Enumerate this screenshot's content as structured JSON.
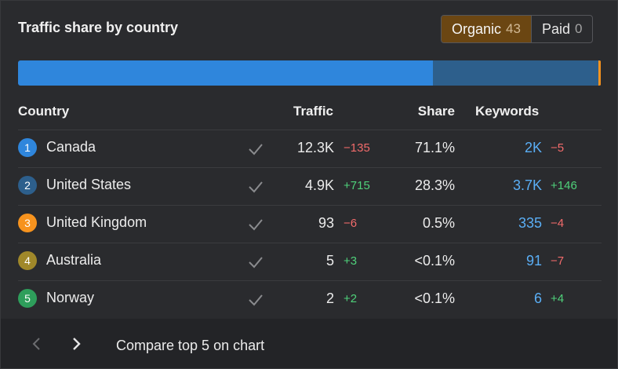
{
  "widget": {
    "title": "Traffic share by country",
    "toggle": {
      "organic_label": "Organic",
      "organic_count": "43",
      "paid_label": "Paid",
      "paid_count": "0",
      "selected": "Organic"
    }
  },
  "share_bar": {
    "segments": [
      {
        "country": "Canada",
        "share": 71.1,
        "color": "#2f86dc"
      },
      {
        "country": "United States",
        "share": 28.3,
        "color": "#2d5f8c"
      },
      {
        "country": "United Kingdom",
        "share": 0.5,
        "color": "#f7931e"
      }
    ]
  },
  "table": {
    "headers": {
      "country": "Country",
      "traffic": "Traffic",
      "share": "Share",
      "keywords": "Keywords"
    },
    "rows": [
      {
        "rank": "1",
        "country": "Canada",
        "traffic": "12.3K",
        "traffic_delta": "−135",
        "traffic_delta_dir": "neg",
        "share": "71.1%",
        "keywords": "2K",
        "keywords_delta": "−5",
        "keywords_delta_dir": "neg",
        "color": "#2f86dc",
        "checked": true
      },
      {
        "rank": "2",
        "country": "United States",
        "traffic": "4.9K",
        "traffic_delta": "+715",
        "traffic_delta_dir": "pos",
        "share": "28.3%",
        "keywords": "3.7K",
        "keywords_delta": "+146",
        "keywords_delta_dir": "pos",
        "color": "#2d5f8c",
        "checked": true
      },
      {
        "rank": "3",
        "country": "United Kingdom",
        "traffic": "93",
        "traffic_delta": "−6",
        "traffic_delta_dir": "neg",
        "share": "0.5%",
        "keywords": "335",
        "keywords_delta": "−4",
        "keywords_delta_dir": "neg",
        "color": "#f7931e",
        "checked": true
      },
      {
        "rank": "4",
        "country": "Australia",
        "traffic": "5",
        "traffic_delta": "+3",
        "traffic_delta_dir": "pos",
        "share": "<0.1%",
        "keywords": "91",
        "keywords_delta": "−7",
        "keywords_delta_dir": "neg",
        "color": "#a0882a",
        "checked": true
      },
      {
        "rank": "5",
        "country": "Norway",
        "traffic": "2",
        "traffic_delta": "+2",
        "traffic_delta_dir": "pos",
        "share": "<0.1%",
        "keywords": "6",
        "keywords_delta": "+4",
        "keywords_delta_dir": "pos",
        "color": "#2e9e5b",
        "checked": true
      }
    ]
  },
  "footer": {
    "prev_icon": "chevron-left-icon",
    "next_icon": "chevron-right-icon",
    "compare_label": "Compare top 5 on chart"
  }
}
